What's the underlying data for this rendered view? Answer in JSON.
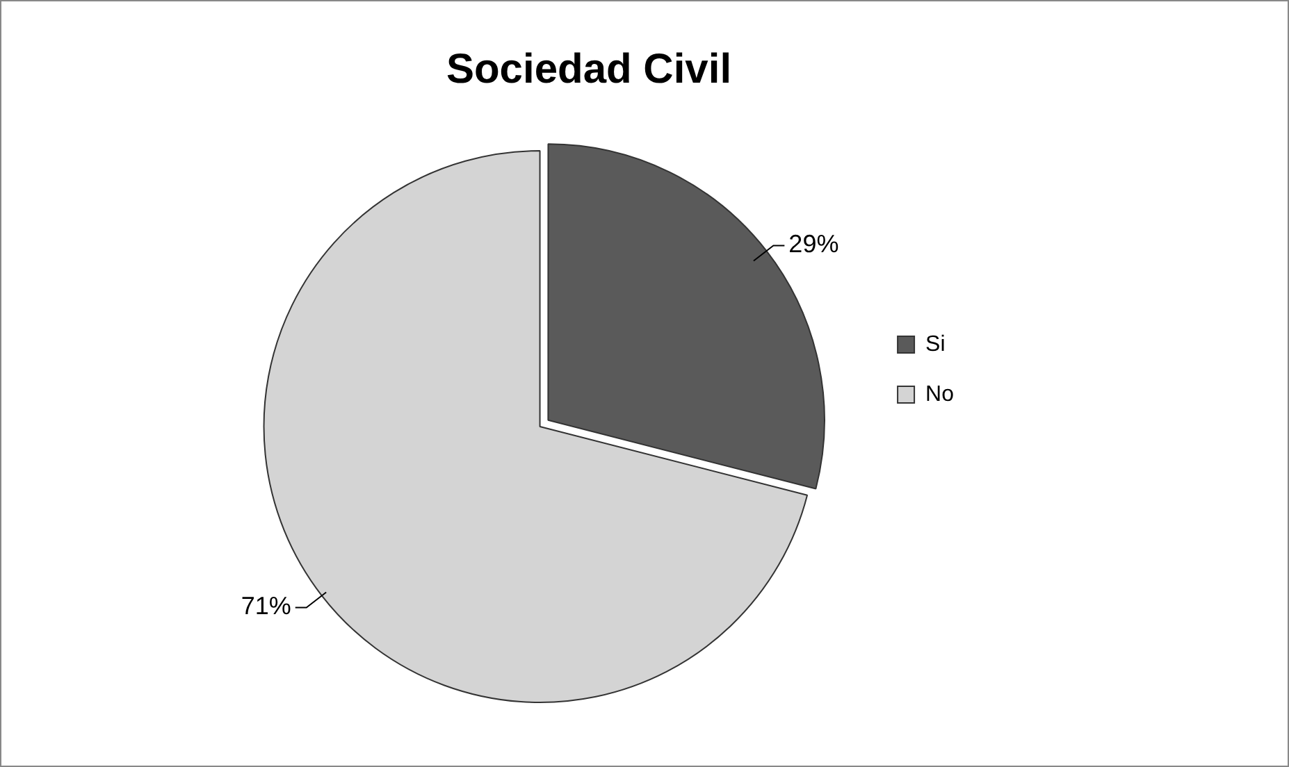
{
  "chart_data": {
    "type": "pie",
    "title": "Sociedad Civil",
    "categories": [
      "Si",
      "No"
    ],
    "values": [
      29,
      71
    ],
    "colors": [
      "#5a5a5a",
      "#d4d4d4"
    ],
    "value_labels": [
      "29%",
      "71%"
    ],
    "legend": "right"
  }
}
